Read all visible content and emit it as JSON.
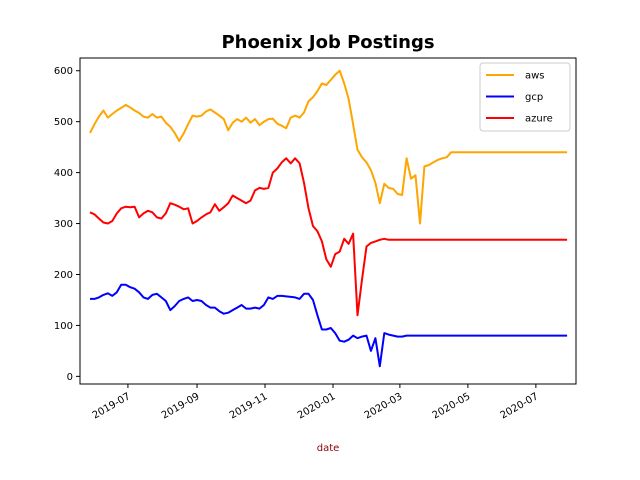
{
  "chart_data": {
    "type": "line",
    "title": "Phoenix Job Postings",
    "xlabel": "date",
    "xlabel_color": "#8b0000",
    "ylabel": "",
    "ylim": [
      -15,
      625
    ],
    "xlim": [
      "2019-05-19",
      "2020-08-06"
    ],
    "yticks": [
      0,
      100,
      200,
      300,
      400,
      500,
      600
    ],
    "xticks": [
      "2019-07-01",
      "2019-09-01",
      "2019-11-01",
      "2020-01-01",
      "2020-03-01",
      "2020-05-01",
      "2020-07-01"
    ],
    "xtick_labels": [
      "2019-07",
      "2019-09",
      "2019-11",
      "2020-01",
      "2020-03",
      "2020-05",
      "2020-07"
    ],
    "legend_position": "top-right",
    "x": [
      "2019-05-28",
      "2019-06-01",
      "2019-06-05",
      "2019-06-09",
      "2019-06-13",
      "2019-06-17",
      "2019-06-21",
      "2019-06-25",
      "2019-06-29",
      "2019-07-03",
      "2019-07-07",
      "2019-07-11",
      "2019-07-15",
      "2019-07-19",
      "2019-07-23",
      "2019-07-27",
      "2019-07-31",
      "2019-08-04",
      "2019-08-08",
      "2019-08-12",
      "2019-08-16",
      "2019-08-20",
      "2019-08-24",
      "2019-08-28",
      "2019-09-01",
      "2019-09-05",
      "2019-09-09",
      "2019-09-13",
      "2019-09-17",
      "2019-09-21",
      "2019-09-25",
      "2019-09-29",
      "2019-10-03",
      "2019-10-07",
      "2019-10-11",
      "2019-10-15",
      "2019-10-19",
      "2019-10-23",
      "2019-10-27",
      "2019-10-31",
      "2019-11-04",
      "2019-11-08",
      "2019-11-12",
      "2019-11-16",
      "2019-11-20",
      "2019-11-24",
      "2019-11-28",
      "2019-12-02",
      "2019-12-06",
      "2019-12-10",
      "2019-12-14",
      "2019-12-18",
      "2019-12-22",
      "2019-12-26",
      "2019-12-30",
      "2020-01-03",
      "2020-01-07",
      "2020-01-11",
      "2020-01-15",
      "2020-01-19",
      "2020-01-23",
      "2020-01-27",
      "2020-01-31",
      "2020-02-04",
      "2020-02-08",
      "2020-02-12",
      "2020-02-16",
      "2020-02-20",
      "2020-02-24",
      "2020-02-28",
      "2020-03-03",
      "2020-03-07",
      "2020-03-11",
      "2020-03-15",
      "2020-03-19",
      "2020-03-23",
      "2020-03-27",
      "2020-03-31",
      "2020-04-04",
      "2020-04-08",
      "2020-04-12",
      "2020-04-16",
      "2020-04-20",
      "2020-04-24",
      "2020-04-28",
      "2020-05-02",
      "2020-05-06",
      "2020-05-10",
      "2020-05-14",
      "2020-05-18",
      "2020-05-22",
      "2020-05-26",
      "2020-05-30",
      "2020-06-03",
      "2020-06-05",
      "2020-06-08",
      "2020-06-11",
      "2020-06-15",
      "2020-06-19",
      "2020-06-23",
      "2020-06-27",
      "2020-07-01",
      "2020-07-05",
      "2020-07-09",
      "2020-07-13",
      "2020-07-17",
      "2020-07-21",
      "2020-07-25",
      "2020-07-29"
    ],
    "series": [
      {
        "name": "aws",
        "color": "#ffa500",
        "values": [
          478,
          495,
          510,
          522,
          508,
          515,
          522,
          527,
          533,
          528,
          522,
          517,
          510,
          508,
          515,
          508,
          510,
          498,
          490,
          478,
          462,
          477,
          495,
          512,
          510,
          512,
          520,
          524,
          518,
          512,
          505,
          483,
          498,
          505,
          500,
          508,
          498,
          505,
          493,
          500,
          505,
          506,
          496,
          492,
          487,
          508,
          512,
          508,
          518,
          540,
          548,
          560,
          575,
          572,
          582,
          592,
          600,
          575,
          545,
          495,
          445,
          430,
          420,
          405,
          380,
          340,
          378,
          370,
          368,
          358,
          356,
          428,
          388,
          395,
          300,
          412,
          415,
          420,
          425,
          428,
          430,
          440,
          440,
          440,
          440,
          440,
          440,
          440,
          440,
          440,
          440,
          440,
          440,
          440,
          440,
          440,
          440,
          440,
          440,
          440,
          440,
          440,
          440,
          440,
          440,
          440,
          440,
          440,
          440
        ]
      },
      {
        "name": "gcp",
        "color": "#0000ff",
        "values": [
          152,
          152,
          155,
          160,
          163,
          158,
          165,
          180,
          180,
          175,
          172,
          165,
          155,
          152,
          160,
          162,
          155,
          148,
          130,
          138,
          148,
          152,
          155,
          148,
          150,
          148,
          140,
          135,
          135,
          128,
          123,
          125,
          130,
          135,
          140,
          133,
          133,
          135,
          133,
          140,
          155,
          152,
          158,
          158,
          157,
          156,
          155,
          152,
          162,
          162,
          150,
          120,
          92,
          92,
          95,
          85,
          70,
          68,
          72,
          80,
          75,
          78,
          80,
          50,
          75,
          20,
          85,
          82,
          80,
          78,
          78,
          80,
          80,
          80,
          80,
          80,
          80,
          80,
          80,
          80,
          80,
          80,
          80,
          80,
          80,
          80,
          80,
          80,
          80,
          80,
          80,
          80,
          80,
          80,
          80,
          80,
          80,
          80,
          80,
          80,
          80,
          80,
          80,
          80,
          80,
          80,
          80,
          80,
          80
        ]
      },
      {
        "name": "azure",
        "color": "#ff0000",
        "values": [
          322,
          318,
          310,
          302,
          300,
          305,
          320,
          330,
          333,
          332,
          333,
          312,
          320,
          325,
          322,
          312,
          310,
          320,
          340,
          337,
          333,
          328,
          330,
          300,
          305,
          312,
          318,
          322,
          338,
          325,
          332,
          340,
          355,
          350,
          345,
          340,
          345,
          365,
          370,
          368,
          370,
          400,
          408,
          420,
          428,
          418,
          428,
          418,
          380,
          330,
          295,
          285,
          265,
          230,
          215,
          240,
          245,
          270,
          260,
          280,
          120,
          190,
          255,
          262,
          265,
          268,
          270,
          268,
          268,
          268,
          268,
          268,
          268,
          268,
          268,
          268,
          268,
          268,
          268,
          268,
          268,
          268,
          268,
          268,
          268,
          268,
          268,
          268,
          268,
          268,
          268,
          268,
          268,
          268,
          268,
          268,
          268,
          268,
          268,
          268,
          268,
          268,
          268,
          268,
          268,
          268,
          268,
          268,
          268
        ]
      }
    ]
  }
}
